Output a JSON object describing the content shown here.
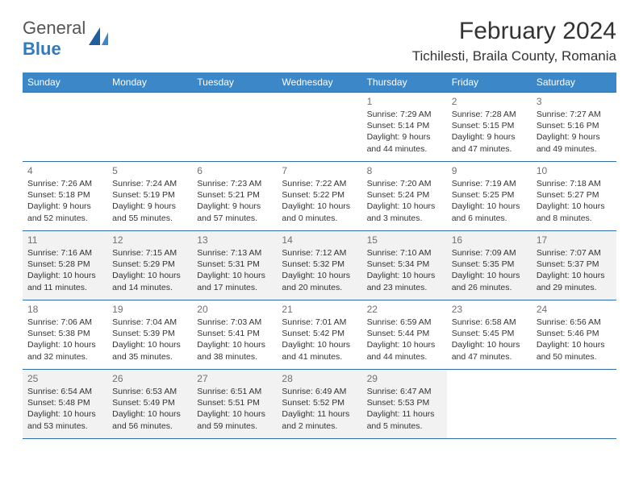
{
  "brand": {
    "word1": "General",
    "word2": "Blue"
  },
  "title": "February 2024",
  "location": "Tichilesti, Braila County, Romania",
  "header_bg": "#3b87c8",
  "border_color": "#2f6fa8",
  "alt_row_bg": "#f2f2f2",
  "text_color": "#333333",
  "daynum_color": "#707070",
  "days_of_week": [
    "Sunday",
    "Monday",
    "Tuesday",
    "Wednesday",
    "Thursday",
    "Friday",
    "Saturday"
  ],
  "weeks": [
    [
      null,
      null,
      null,
      null,
      {
        "n": "1",
        "sr": "7:29 AM",
        "ss": "5:14 PM",
        "dl": "9 hours and 44 minutes."
      },
      {
        "n": "2",
        "sr": "7:28 AM",
        "ss": "5:15 PM",
        "dl": "9 hours and 47 minutes."
      },
      {
        "n": "3",
        "sr": "7:27 AM",
        "ss": "5:16 PM",
        "dl": "9 hours and 49 minutes."
      }
    ],
    [
      {
        "n": "4",
        "sr": "7:26 AM",
        "ss": "5:18 PM",
        "dl": "9 hours and 52 minutes."
      },
      {
        "n": "5",
        "sr": "7:24 AM",
        "ss": "5:19 PM",
        "dl": "9 hours and 55 minutes."
      },
      {
        "n": "6",
        "sr": "7:23 AM",
        "ss": "5:21 PM",
        "dl": "9 hours and 57 minutes."
      },
      {
        "n": "7",
        "sr": "7:22 AM",
        "ss": "5:22 PM",
        "dl": "10 hours and 0 minutes."
      },
      {
        "n": "8",
        "sr": "7:20 AM",
        "ss": "5:24 PM",
        "dl": "10 hours and 3 minutes."
      },
      {
        "n": "9",
        "sr": "7:19 AM",
        "ss": "5:25 PM",
        "dl": "10 hours and 6 minutes."
      },
      {
        "n": "10",
        "sr": "7:18 AM",
        "ss": "5:27 PM",
        "dl": "10 hours and 8 minutes."
      }
    ],
    [
      {
        "n": "11",
        "sr": "7:16 AM",
        "ss": "5:28 PM",
        "dl": "10 hours and 11 minutes."
      },
      {
        "n": "12",
        "sr": "7:15 AM",
        "ss": "5:29 PM",
        "dl": "10 hours and 14 minutes."
      },
      {
        "n": "13",
        "sr": "7:13 AM",
        "ss": "5:31 PM",
        "dl": "10 hours and 17 minutes."
      },
      {
        "n": "14",
        "sr": "7:12 AM",
        "ss": "5:32 PM",
        "dl": "10 hours and 20 minutes."
      },
      {
        "n": "15",
        "sr": "7:10 AM",
        "ss": "5:34 PM",
        "dl": "10 hours and 23 minutes."
      },
      {
        "n": "16",
        "sr": "7:09 AM",
        "ss": "5:35 PM",
        "dl": "10 hours and 26 minutes."
      },
      {
        "n": "17",
        "sr": "7:07 AM",
        "ss": "5:37 PM",
        "dl": "10 hours and 29 minutes."
      }
    ],
    [
      {
        "n": "18",
        "sr": "7:06 AM",
        "ss": "5:38 PM",
        "dl": "10 hours and 32 minutes."
      },
      {
        "n": "19",
        "sr": "7:04 AM",
        "ss": "5:39 PM",
        "dl": "10 hours and 35 minutes."
      },
      {
        "n": "20",
        "sr": "7:03 AM",
        "ss": "5:41 PM",
        "dl": "10 hours and 38 minutes."
      },
      {
        "n": "21",
        "sr": "7:01 AM",
        "ss": "5:42 PM",
        "dl": "10 hours and 41 minutes."
      },
      {
        "n": "22",
        "sr": "6:59 AM",
        "ss": "5:44 PM",
        "dl": "10 hours and 44 minutes."
      },
      {
        "n": "23",
        "sr": "6:58 AM",
        "ss": "5:45 PM",
        "dl": "10 hours and 47 minutes."
      },
      {
        "n": "24",
        "sr": "6:56 AM",
        "ss": "5:46 PM",
        "dl": "10 hours and 50 minutes."
      }
    ],
    [
      {
        "n": "25",
        "sr": "6:54 AM",
        "ss": "5:48 PM",
        "dl": "10 hours and 53 minutes."
      },
      {
        "n": "26",
        "sr": "6:53 AM",
        "ss": "5:49 PM",
        "dl": "10 hours and 56 minutes."
      },
      {
        "n": "27",
        "sr": "6:51 AM",
        "ss": "5:51 PM",
        "dl": "10 hours and 59 minutes."
      },
      {
        "n": "28",
        "sr": "6:49 AM",
        "ss": "5:52 PM",
        "dl": "11 hours and 2 minutes."
      },
      {
        "n": "29",
        "sr": "6:47 AM",
        "ss": "5:53 PM",
        "dl": "11 hours and 5 minutes."
      },
      null,
      null
    ]
  ],
  "labels": {
    "sunrise": "Sunrise:",
    "sunset": "Sunset:",
    "daylight": "Daylight:"
  },
  "shaded_rows": [
    2,
    4
  ]
}
